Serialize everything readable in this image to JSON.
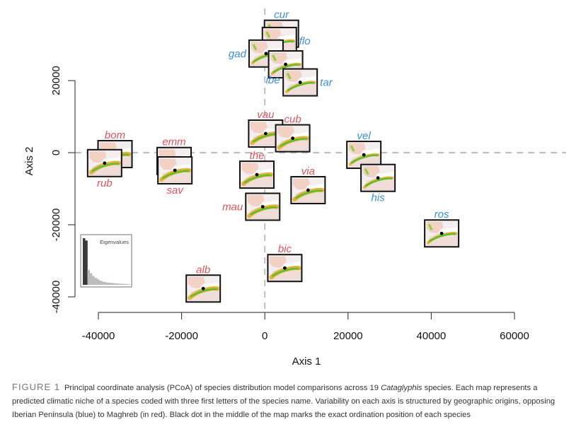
{
  "chart_data": {
    "type": "scatter",
    "title": "",
    "xlabel": "Axis 1",
    "ylabel": "Axis 2",
    "xlim": [
      -40000,
      60000
    ],
    "ylim": [
      -40000,
      20000
    ],
    "xticks": [
      -40000,
      -20000,
      0,
      20000,
      40000,
      60000
    ],
    "yticks": [
      -40000,
      -20000,
      0,
      20000
    ],
    "xtick_labels": [
      "-40000",
      "-20000",
      "0",
      "20000",
      "40000",
      "60000"
    ],
    "ytick_labels": [
      "-40000",
      "-20000",
      "0",
      "20000"
    ],
    "reference_lines": {
      "x": 0,
      "y": 0,
      "style": "dashed"
    },
    "grid": false,
    "colors": {
      "iberia": "#3a8ee0",
      "maghreb": "#e8505b"
    },
    "groups": {
      "iberia": "Iberian Peninsula (blue)",
      "maghreb": "Maghreb (red)"
    },
    "points": [
      {
        "label": "cur",
        "group": "iberia",
        "x": 4000,
        "y": 33000,
        "label_pos": "top"
      },
      {
        "label": "flo",
        "group": "iberia",
        "x": 3500,
        "y": 31000,
        "label_pos": "right"
      },
      {
        "label": "gad",
        "group": "iberia",
        "x": 300,
        "y": 27500,
        "label_pos": "left"
      },
      {
        "label": "ibe",
        "group": "iberia",
        "x": 5000,
        "y": 24500,
        "label_pos": "bottom-left"
      },
      {
        "label": "tar",
        "group": "iberia",
        "x": 8500,
        "y": 19500,
        "label_pos": "right"
      },
      {
        "label": "vau",
        "group": "maghreb",
        "x": 200,
        "y": 5300,
        "label_pos": "top"
      },
      {
        "label": "cub",
        "group": "maghreb",
        "x": 6700,
        "y": 4000,
        "label_pos": "top"
      },
      {
        "label": "bom",
        "group": "maghreb",
        "x": -36000,
        "y": -400,
        "label_pos": "top"
      },
      {
        "label": "rub",
        "group": "maghreb",
        "x": -38500,
        "y": -2900,
        "label_pos": "bottom"
      },
      {
        "label": "emm",
        "group": "maghreb",
        "x": -21800,
        "y": -2300,
        "label_pos": "top"
      },
      {
        "label": "sav",
        "group": "maghreb",
        "x": -21600,
        "y": -4900,
        "label_pos": "bottom"
      },
      {
        "label": "the",
        "group": "maghreb",
        "x": -1900,
        "y": -6100,
        "label_pos": "top"
      },
      {
        "label": "via",
        "group": "maghreb",
        "x": 10400,
        "y": -10400,
        "label_pos": "top"
      },
      {
        "label": "mau",
        "group": "maghreb",
        "x": -500,
        "y": -15000,
        "label_pos": "left"
      },
      {
        "label": "vel",
        "group": "iberia",
        "x": 23800,
        "y": -600,
        "label_pos": "top"
      },
      {
        "label": "his",
        "group": "iberia",
        "x": 27200,
        "y": -7000,
        "label_pos": "bottom"
      },
      {
        "label": "ros",
        "group": "iberia",
        "x": 42500,
        "y": -22400,
        "label_pos": "top"
      },
      {
        "label": "bic",
        "group": "maghreb",
        "x": 4800,
        "y": -32000,
        "label_pos": "top"
      },
      {
        "label": "alb",
        "group": "maghreb",
        "x": -14800,
        "y": -37700,
        "label_pos": "top"
      }
    ],
    "inset": {
      "title": "Eigenvalues",
      "type": "bar",
      "highlighted_count": 2,
      "values": [
        100,
        95,
        32,
        25,
        19,
        15,
        12,
        9,
        7,
        6,
        5,
        4.5,
        4,
        3.5,
        3,
        2.6,
        2.3,
        2,
        1.8,
        1.5
      ]
    }
  },
  "caption": {
    "figure_label": "FIGURE 1",
    "text_before_italic": "Principal coordinate analysis (PCoA) of species distribution model comparisons across 19 ",
    "italic": "Cataglyphis",
    "text_after_italic": " species. Each map represents a predicted climatic niche of a species coded with three first letters of the species name. Variability on each axis is structured by geographic origins, opposing Iberian Peninsula (blue) to Maghreb (in red). Black dot in the middle of the map marks the exact ordination position of each species"
  }
}
